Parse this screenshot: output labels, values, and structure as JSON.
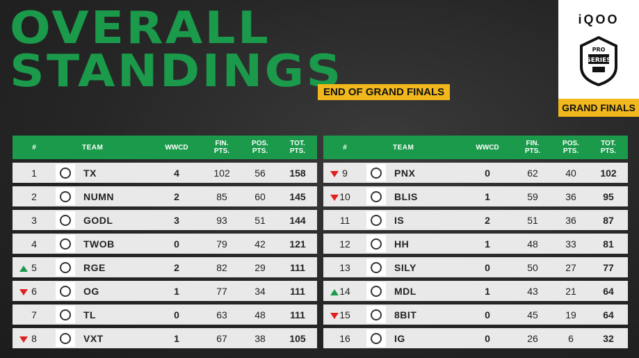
{
  "title_line1": "OVERALL",
  "title_line2": "STANDINGS",
  "subtitle": "END OF GRAND FINALS",
  "brand": {
    "name": "iQOO",
    "stage": "GRAND FINALS",
    "badge_text": "PRO SERIES"
  },
  "colors": {
    "accent": "#1a9a4a",
    "highlight": "#f0b81c",
    "up": "#1a9a4a",
    "down": "#e02020"
  },
  "headers": {
    "rank": "#",
    "team": "TEAM",
    "wwcd": "WWCD",
    "fin": "FIN.\nPTS.",
    "pos": "POS.\nPTS.",
    "tot": "TOT.\nPTS."
  },
  "left": [
    {
      "rank": "1",
      "trend": "",
      "team": "TX",
      "wwcd": "4",
      "fin": "102",
      "pos": "56",
      "tot": "158",
      "logo": "tx-logo"
    },
    {
      "rank": "2",
      "trend": "",
      "team": "NUMN",
      "wwcd": "2",
      "fin": "85",
      "pos": "60",
      "tot": "145",
      "logo": "numn-logo"
    },
    {
      "rank": "3",
      "trend": "",
      "team": "GODL",
      "wwcd": "3",
      "fin": "93",
      "pos": "51",
      "tot": "144",
      "logo": "godl-logo"
    },
    {
      "rank": "4",
      "trend": "",
      "team": "TWOB",
      "wwcd": "0",
      "fin": "79",
      "pos": "42",
      "tot": "121",
      "logo": "twob-logo"
    },
    {
      "rank": "5",
      "trend": "up",
      "team": "RGE",
      "wwcd": "2",
      "fin": "82",
      "pos": "29",
      "tot": "111",
      "logo": "rge-logo"
    },
    {
      "rank": "6",
      "trend": "down",
      "team": "OG",
      "wwcd": "1",
      "fin": "77",
      "pos": "34",
      "tot": "111",
      "logo": "og-logo"
    },
    {
      "rank": "7",
      "trend": "",
      "team": "TL",
      "wwcd": "0",
      "fin": "63",
      "pos": "48",
      "tot": "111",
      "logo": "tl-logo"
    },
    {
      "rank": "8",
      "trend": "down",
      "team": "VXT",
      "wwcd": "1",
      "fin": "67",
      "pos": "38",
      "tot": "105",
      "logo": "vxt-logo"
    }
  ],
  "right": [
    {
      "rank": "9",
      "trend": "down",
      "team": "PNX",
      "wwcd": "0",
      "fin": "62",
      "pos": "40",
      "tot": "102",
      "logo": "pnx-logo"
    },
    {
      "rank": "10",
      "trend": "down",
      "team": "BLIS",
      "wwcd": "1",
      "fin": "59",
      "pos": "36",
      "tot": "95",
      "logo": "blis-logo"
    },
    {
      "rank": "11",
      "trend": "",
      "team": "IS",
      "wwcd": "2",
      "fin": "51",
      "pos": "36",
      "tot": "87",
      "logo": "is-logo"
    },
    {
      "rank": "12",
      "trend": "",
      "team": "HH",
      "wwcd": "1",
      "fin": "48",
      "pos": "33",
      "tot": "81",
      "logo": "hh-logo"
    },
    {
      "rank": "13",
      "trend": "",
      "team": "SILY",
      "wwcd": "0",
      "fin": "50",
      "pos": "27",
      "tot": "77",
      "logo": "sily-logo"
    },
    {
      "rank": "14",
      "trend": "up",
      "team": "MDL",
      "wwcd": "1",
      "fin": "43",
      "pos": "21",
      "tot": "64",
      "logo": "mdl-logo"
    },
    {
      "rank": "15",
      "trend": "down",
      "team": "8BIT",
      "wwcd": "0",
      "fin": "45",
      "pos": "19",
      "tot": "64",
      "logo": "8bit-logo"
    },
    {
      "rank": "16",
      "trend": "",
      "team": "IG",
      "wwcd": "0",
      "fin": "26",
      "pos": "6",
      "tot": "32",
      "logo": "ig-logo"
    }
  ]
}
